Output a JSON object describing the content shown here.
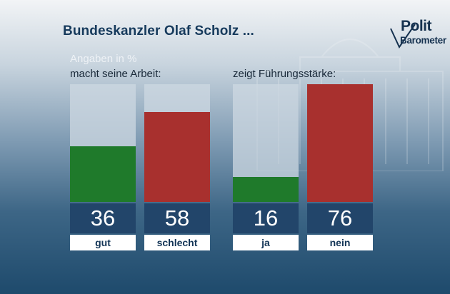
{
  "title": "Bundeskanzler Olaf Scholz ...",
  "logo": {
    "line1": "Polit",
    "line2": "Barometer"
  },
  "unit_label": "Angaben in %",
  "colors": {
    "positive": "#1f7a2b",
    "negative": "#a8302e",
    "value_box": "#22456a",
    "track": "#cdd8e2"
  },
  "chart_data": [
    {
      "type": "bar",
      "title": "macht seine Arbeit:",
      "categories": [
        "gut",
        "schlecht"
      ],
      "values": [
        36,
        58
      ],
      "ylim": [
        0,
        76
      ]
    },
    {
      "type": "bar",
      "title": "zeigt Führungsstärke:",
      "categories": [
        "ja",
        "nein"
      ],
      "values": [
        16,
        76
      ],
      "ylim": [
        0,
        76
      ]
    }
  ]
}
